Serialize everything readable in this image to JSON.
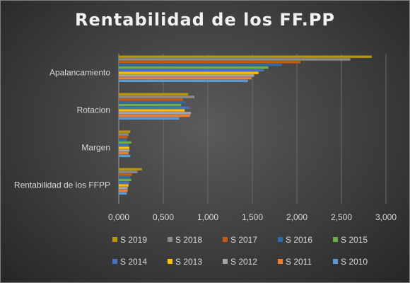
{
  "chart_data": {
    "type": "bar",
    "orientation": "horizontal",
    "title": "Rentabilidad de los FF.PP",
    "xlabel": "",
    "ylabel": "",
    "categories": [
      "Rentabilidad de los FFPP",
      "Margen",
      "Rotacion",
      "Apalancamiento"
    ],
    "xlim": [
      0,
      3
    ],
    "x_ticks": [
      "0,000",
      "0,500",
      "1,000",
      "1,500",
      "2,000",
      "2,500",
      "3,000"
    ],
    "grid": "vertical",
    "legend_position": "bottom",
    "series": [
      {
        "name": "S 2019",
        "color": "#b8960c",
        "values": [
          0.26,
          0.13,
          0.78,
          2.84
        ]
      },
      {
        "name": "S 2018",
        "color": "#8c8c8c",
        "values": [
          0.21,
          0.11,
          0.85,
          2.6
        ]
      },
      {
        "name": "S 2017",
        "color": "#c55a11",
        "values": [
          0.15,
          0.1,
          0.72,
          2.04
        ]
      },
      {
        "name": "S 2016",
        "color": "#2e6aa8",
        "values": [
          0.13,
          0.09,
          0.75,
          1.83
        ]
      },
      {
        "name": "S 2015",
        "color": "#70ad47",
        "values": [
          0.14,
          0.14,
          0.7,
          1.68
        ]
      },
      {
        "name": "S 2014",
        "color": "#4472c4",
        "values": [
          0.12,
          0.11,
          0.79,
          1.63
        ]
      },
      {
        "name": "S 2013",
        "color": "#ffc000",
        "values": [
          0.11,
          0.12,
          0.74,
          1.57
        ]
      },
      {
        "name": "S 2012",
        "color": "#a5a5a5",
        "values": [
          0.1,
          0.12,
          0.81,
          1.52
        ]
      },
      {
        "name": "S 2011",
        "color": "#ed7d31",
        "values": [
          0.1,
          0.11,
          0.8,
          1.49
        ]
      },
      {
        "name": "S 2010",
        "color": "#5b9bd5",
        "values": [
          0.09,
          0.13,
          0.68,
          1.45
        ]
      }
    ]
  }
}
